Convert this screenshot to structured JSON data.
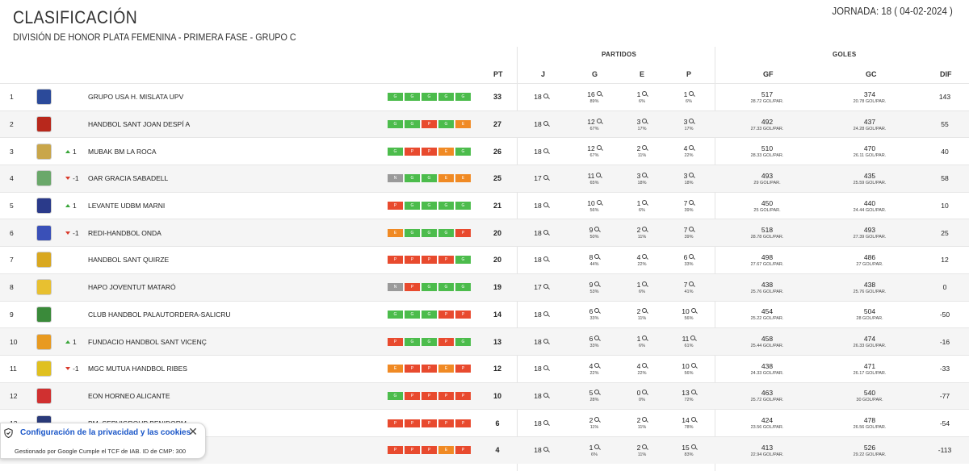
{
  "header": {
    "title": "CLASIFICACIÓN",
    "subtitle": "DIVISIÓN DE HONOR PLATA FEMENINA - PRIMERA FASE - GRUPO C",
    "jornada": "JORNADA: 18 ( 04-02-2024 )"
  },
  "columns": {
    "group_partidos": "PARTIDOS",
    "group_goles": "GOLES",
    "pt": "PT",
    "j": "J",
    "g": "G",
    "e": "E",
    "p": "P",
    "gf": "GF",
    "gc": "GC",
    "dif": "DIF"
  },
  "colors": {
    "win": "#4cbc4c",
    "loss": "#e84a2e",
    "draw": "#f08a24",
    "none": "#9a9a9a"
  },
  "rows": [
    {
      "pos": "1",
      "change": "",
      "dir": "",
      "team": "GRUPO USA H. MISLATA UPV",
      "form": [
        "G",
        "G",
        "G",
        "G",
        "G"
      ],
      "pt": "33",
      "j": "18",
      "g": "16",
      "g_pct": "89%",
      "e": "1",
      "e_pct": "6%",
      "p": "1",
      "p_pct": "6%",
      "gf": "517",
      "gf_avg": "28.72 GOL/PAR.",
      "gc": "374",
      "gc_avg": "20.78 GOL/PAR.",
      "dif": "143",
      "logo_color": "#2b4a9a"
    },
    {
      "pos": "2",
      "change": "",
      "dir": "",
      "team": "HANDBOL SANT JOAN DESPÍ A",
      "form": [
        "G",
        "G",
        "P",
        "G",
        "E"
      ],
      "pt": "27",
      "j": "18",
      "g": "12",
      "g_pct": "67%",
      "e": "3",
      "e_pct": "17%",
      "p": "3",
      "p_pct": "17%",
      "gf": "492",
      "gf_avg": "27.33 GOL/PAR.",
      "gc": "437",
      "gc_avg": "24.28 GOL/PAR.",
      "dif": "55",
      "logo_color": "#b8281c"
    },
    {
      "pos": "3",
      "change": "1",
      "dir": "up",
      "team": "MUBAK BM LA ROCA",
      "form": [
        "G",
        "P",
        "P",
        "E",
        "G"
      ],
      "pt": "26",
      "j": "18",
      "g": "12",
      "g_pct": "67%",
      "e": "2",
      "e_pct": "11%",
      "p": "4",
      "p_pct": "22%",
      "gf": "510",
      "gf_avg": "28.33 GOL/PAR.",
      "gc": "470",
      "gc_avg": "26.11 GOL/PAR.",
      "dif": "40",
      "logo_color": "#c9a64a"
    },
    {
      "pos": "4",
      "change": "-1",
      "dir": "down",
      "team": "OAR GRACIA SABADELL",
      "form": [
        "N",
        "G",
        "G",
        "E",
        "E"
      ],
      "pt": "25",
      "j": "17",
      "g": "11",
      "g_pct": "65%",
      "e": "3",
      "e_pct": "18%",
      "p": "3",
      "p_pct": "18%",
      "gf": "493",
      "gf_avg": "29 GOL/PAR.",
      "gc": "435",
      "gc_avg": "25.59 GOL/PAR.",
      "dif": "58",
      "logo_color": "#6aa86a"
    },
    {
      "pos": "5",
      "change": "1",
      "dir": "up",
      "team": "LEVANTE UDBM MARNI",
      "form": [
        "P",
        "G",
        "G",
        "G",
        "G"
      ],
      "pt": "21",
      "j": "18",
      "g": "10",
      "g_pct": "56%",
      "e": "1",
      "e_pct": "6%",
      "p": "7",
      "p_pct": "39%",
      "gf": "450",
      "gf_avg": "25 GOL/PAR.",
      "gc": "440",
      "gc_avg": "24.44 GOL/PAR.",
      "dif": "10",
      "logo_color": "#2a3a8a"
    },
    {
      "pos": "6",
      "change": "-1",
      "dir": "down",
      "team": "REDI-HANDBOL ONDA",
      "form": [
        "E",
        "G",
        "G",
        "G",
        "P"
      ],
      "pt": "20",
      "j": "18",
      "g": "9",
      "g_pct": "50%",
      "e": "2",
      "e_pct": "11%",
      "p": "7",
      "p_pct": "39%",
      "gf": "518",
      "gf_avg": "28.78 GOL/PAR.",
      "gc": "493",
      "gc_avg": "27.39 GOL/PAR.",
      "dif": "25",
      "logo_color": "#3a50b8"
    },
    {
      "pos": "7",
      "change": "",
      "dir": "",
      "team": "HANDBOL SANT QUIRZE",
      "form": [
        "P",
        "P",
        "P",
        "P",
        "G"
      ],
      "pt": "20",
      "j": "18",
      "g": "8",
      "g_pct": "44%",
      "e": "4",
      "e_pct": "22%",
      "p": "6",
      "p_pct": "33%",
      "gf": "498",
      "gf_avg": "27.67 GOL/PAR.",
      "gc": "486",
      "gc_avg": "27 GOL/PAR.",
      "dif": "12",
      "logo_color": "#d9a820"
    },
    {
      "pos": "8",
      "change": "",
      "dir": "",
      "team": "HAPO JOVENTUT MATARÓ",
      "form": [
        "N",
        "P",
        "G",
        "G",
        "G"
      ],
      "pt": "19",
      "j": "17",
      "g": "9",
      "g_pct": "53%",
      "e": "1",
      "e_pct": "6%",
      "p": "7",
      "p_pct": "41%",
      "gf": "438",
      "gf_avg": "25.76 GOL/PAR.",
      "gc": "438",
      "gc_avg": "25.76 GOL/PAR.",
      "dif": "0",
      "logo_color": "#e8c030"
    },
    {
      "pos": "9",
      "change": "",
      "dir": "",
      "team": "CLUB HANDBOL PALAUTORDERA-SALICRU",
      "form": [
        "G",
        "G",
        "G",
        "P",
        "P"
      ],
      "pt": "14",
      "j": "18",
      "g": "6",
      "g_pct": "33%",
      "e": "2",
      "e_pct": "11%",
      "p": "10",
      "p_pct": "56%",
      "gf": "454",
      "gf_avg": "25.22 GOL/PAR.",
      "gc": "504",
      "gc_avg": "28 GOL/PAR.",
      "dif": "-50",
      "logo_color": "#3a8a3a"
    },
    {
      "pos": "10",
      "change": "1",
      "dir": "up",
      "team": "FUNDACIO HANDBOL SANT VICENÇ",
      "form": [
        "P",
        "G",
        "G",
        "P",
        "G"
      ],
      "pt": "13",
      "j": "18",
      "g": "6",
      "g_pct": "33%",
      "e": "1",
      "e_pct": "6%",
      "p": "11",
      "p_pct": "61%",
      "gf": "458",
      "gf_avg": "25.44 GOL/PAR.",
      "gc": "474",
      "gc_avg": "26.33 GOL/PAR.",
      "dif": "-16",
      "logo_color": "#e89a20"
    },
    {
      "pos": "11",
      "change": "-1",
      "dir": "down",
      "team": "MGC MUTUA HANDBOL RIBES",
      "form": [
        "E",
        "P",
        "P",
        "E",
        "P"
      ],
      "pt": "12",
      "j": "18",
      "g": "4",
      "g_pct": "22%",
      "e": "4",
      "e_pct": "22%",
      "p": "10",
      "p_pct": "56%",
      "gf": "438",
      "gf_avg": "24.33 GOL/PAR.",
      "gc": "471",
      "gc_avg": "26.17 GOL/PAR.",
      "dif": "-33",
      "logo_color": "#e0c020"
    },
    {
      "pos": "12",
      "change": "",
      "dir": "",
      "team": "EON HORNEO ALICANTE",
      "form": [
        "G",
        "P",
        "P",
        "P",
        "P"
      ],
      "pt": "10",
      "j": "18",
      "g": "5",
      "g_pct": "28%",
      "e": "0",
      "e_pct": "0%",
      "p": "13",
      "p_pct": "72%",
      "gf": "463",
      "gf_avg": "25.72 GOL/PAR.",
      "gc": "540",
      "gc_avg": "30 GOL/PAR.",
      "dif": "-77",
      "logo_color": "#d03030"
    },
    {
      "pos": "13",
      "change": "",
      "dir": "",
      "team": "BM. SERVIGROUP BENIDORM",
      "form": [
        "P",
        "P",
        "P",
        "P",
        "P"
      ],
      "pt": "6",
      "j": "18",
      "g": "2",
      "g_pct": "11%",
      "e": "2",
      "e_pct": "11%",
      "p": "14",
      "p_pct": "78%",
      "gf": "424",
      "gf_avg": "23.56 GOL/PAR.",
      "gc": "478",
      "gc_avg": "26.56 GOL/PAR.",
      "dif": "-54",
      "logo_color": "#2a3a7a"
    },
    {
      "pos": "14",
      "change": "",
      "dir": "",
      "team": "",
      "form": [
        "P",
        "P",
        "P",
        "E",
        "P"
      ],
      "pt": "4",
      "j": "18",
      "g": "1",
      "g_pct": "6%",
      "e": "2",
      "e_pct": "11%",
      "p": "15",
      "p_pct": "83%",
      "gf": "413",
      "gf_avg": "22.94 GOL/PAR.",
      "gc": "526",
      "gc_avg": "29.22 GOL/PAR.",
      "dif": "-113",
      "logo_color": "#888888"
    }
  ],
  "cookie": {
    "title": "Configuración de la privacidad y las cookies",
    "subtitle": "Gestionado por Google Cumple el TCF de IAB. ID de CMP: 300"
  }
}
